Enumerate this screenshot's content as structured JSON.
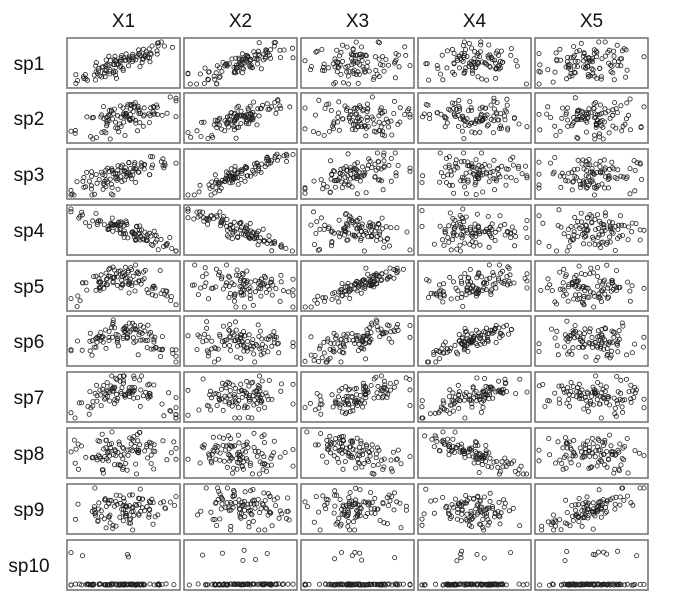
{
  "chart_data": {
    "type": "scatter",
    "layout": "matrix",
    "columns": [
      "X1",
      "X2",
      "X3",
      "X4",
      "X5"
    ],
    "rows": [
      "sp1",
      "sp2",
      "sp3",
      "sp4",
      "sp5",
      "sp6",
      "sp7",
      "sp8",
      "sp9",
      "sp10"
    ],
    "points_per_panel": 100,
    "marker": "open-circle",
    "axes_shown": false,
    "grid": false,
    "colors": {
      "frame": "#777777",
      "marker": "#222222",
      "background": "#ffffff"
    },
    "x_range": [
      0,
      1
    ],
    "y_range": [
      0,
      1
    ],
    "panels": [
      {
        "row": "sp1",
        "col": "X1",
        "trend": "positive-linear",
        "correlation": 0.85
      },
      {
        "row": "sp1",
        "col": "X2",
        "trend": "positive-linear",
        "correlation": 0.75
      },
      {
        "row": "sp1",
        "col": "X3",
        "trend": "none",
        "correlation": 0.1
      },
      {
        "row": "sp1",
        "col": "X4",
        "trend": "none",
        "correlation": 0.0
      },
      {
        "row": "sp1",
        "col": "X5",
        "trend": "none",
        "correlation": 0.0
      },
      {
        "row": "sp2",
        "col": "X1",
        "trend": "positive-linear",
        "correlation": 0.6
      },
      {
        "row": "sp2",
        "col": "X2",
        "trend": "positive-linear",
        "correlation": 0.7
      },
      {
        "row": "sp2",
        "col": "X3",
        "trend": "none",
        "correlation": 0.1
      },
      {
        "row": "sp2",
        "col": "X4",
        "trend": "none",
        "correlation": 0.0
      },
      {
        "row": "sp2",
        "col": "X5",
        "trend": "none",
        "correlation": 0.0
      },
      {
        "row": "sp3",
        "col": "X1",
        "trend": "positive-linear",
        "correlation": 0.75
      },
      {
        "row": "sp3",
        "col": "X2",
        "trend": "positive-linear",
        "correlation": 0.9
      },
      {
        "row": "sp3",
        "col": "X3",
        "trend": "positive-curved",
        "correlation": 0.45
      },
      {
        "row": "sp3",
        "col": "X4",
        "trend": "none",
        "correlation": 0.0
      },
      {
        "row": "sp3",
        "col": "X5",
        "trend": "none",
        "correlation": 0.0
      },
      {
        "row": "sp4",
        "col": "X1",
        "trend": "negative-linear",
        "correlation": -0.85
      },
      {
        "row": "sp4",
        "col": "X2",
        "trend": "negative-linear",
        "correlation": -0.85
      },
      {
        "row": "sp4",
        "col": "X3",
        "trend": "none",
        "correlation": -0.1
      },
      {
        "row": "sp4",
        "col": "X4",
        "trend": "none",
        "correlation": 0.0
      },
      {
        "row": "sp4",
        "col": "X5",
        "trend": "none",
        "correlation": 0.0
      },
      {
        "row": "sp5",
        "col": "X1",
        "trend": "hump",
        "correlation": 0.2
      },
      {
        "row": "sp5",
        "col": "X2",
        "trend": "none",
        "correlation": 0.1
      },
      {
        "row": "sp5",
        "col": "X3",
        "trend": "positive-linear",
        "correlation": 0.9
      },
      {
        "row": "sp5",
        "col": "X4",
        "trend": "positive-linear",
        "correlation": 0.5
      },
      {
        "row": "sp5",
        "col": "X5",
        "trend": "none",
        "correlation": 0.0
      },
      {
        "row": "sp6",
        "col": "X1",
        "trend": "hump",
        "correlation": 0.0
      },
      {
        "row": "sp6",
        "col": "X2",
        "trend": "none",
        "correlation": 0.0
      },
      {
        "row": "sp6",
        "col": "X3",
        "trend": "positive-linear",
        "correlation": 0.6
      },
      {
        "row": "sp6",
        "col": "X4",
        "trend": "positive-linear",
        "correlation": 0.85
      },
      {
        "row": "sp6",
        "col": "X5",
        "trend": "none",
        "correlation": 0.0
      },
      {
        "row": "sp7",
        "col": "X1",
        "trend": "hump",
        "correlation": 0.1
      },
      {
        "row": "sp7",
        "col": "X2",
        "trend": "none",
        "correlation": 0.1
      },
      {
        "row": "sp7",
        "col": "X3",
        "trend": "positive-linear",
        "correlation": 0.6
      },
      {
        "row": "sp7",
        "col": "X4",
        "trend": "positive-linear",
        "correlation": 0.65
      },
      {
        "row": "sp7",
        "col": "X5",
        "trend": "none",
        "correlation": 0.0
      },
      {
        "row": "sp8",
        "col": "X1",
        "trend": "none",
        "correlation": -0.2
      },
      {
        "row": "sp8",
        "col": "X2",
        "trend": "none",
        "correlation": 0.0
      },
      {
        "row": "sp8",
        "col": "X3",
        "trend": "negative-linear",
        "correlation": -0.6
      },
      {
        "row": "sp8",
        "col": "X4",
        "trend": "negative-linear",
        "correlation": -0.75
      },
      {
        "row": "sp8",
        "col": "X5",
        "trend": "none",
        "correlation": 0.0
      },
      {
        "row": "sp9",
        "col": "X1",
        "trend": "none",
        "correlation": 0.1
      },
      {
        "row": "sp9",
        "col": "X2",
        "trend": "none",
        "correlation": 0.1
      },
      {
        "row": "sp9",
        "col": "X3",
        "trend": "none",
        "correlation": 0.1
      },
      {
        "row": "sp9",
        "col": "X4",
        "trend": "none",
        "correlation": 0.2
      },
      {
        "row": "sp9",
        "col": "X5",
        "trend": "positive-linear",
        "correlation": 0.75
      },
      {
        "row": "sp10",
        "col": "X1",
        "trend": "zero-inflated",
        "correlation": 0.0
      },
      {
        "row": "sp10",
        "col": "X2",
        "trend": "zero-inflated",
        "correlation": 0.0
      },
      {
        "row": "sp10",
        "col": "X3",
        "trend": "zero-inflated",
        "correlation": 0.0
      },
      {
        "row": "sp10",
        "col": "X4",
        "trend": "zero-inflated",
        "correlation": 0.0
      },
      {
        "row": "sp10",
        "col": "X5",
        "trend": "zero-inflated",
        "correlation": 0.0
      }
    ]
  }
}
